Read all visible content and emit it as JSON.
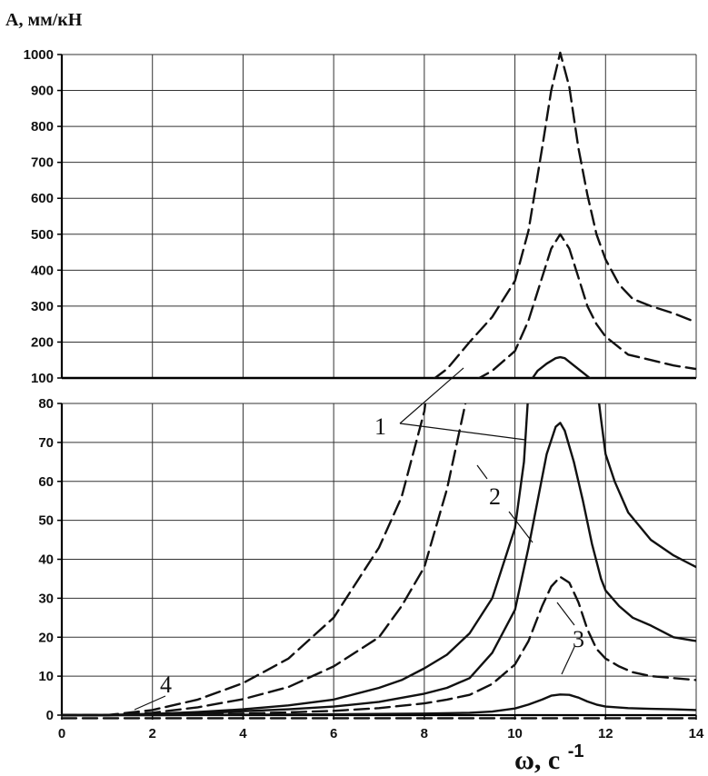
{
  "chart_data": {
    "type": "line",
    "ylabel": "A, мм/кН",
    "xlabel_main": "ω, с",
    "xlabel_exp": "-1",
    "xlim": [
      0,
      14
    ],
    "x_ticks": [
      "0",
      "2",
      "4",
      "6",
      "8",
      "10",
      "12",
      "14"
    ],
    "upper_panel": {
      "ylim": [
        100,
        1000
      ],
      "y_ticks": [
        "100",
        "200",
        "300",
        "400",
        "500",
        "600",
        "700",
        "800",
        "900",
        "1000"
      ]
    },
    "lower_panel": {
      "ylim": [
        0,
        80
      ],
      "y_ticks": [
        "0",
        "10",
        "20",
        "30",
        "40",
        "50",
        "60",
        "70",
        "80"
      ]
    },
    "grid": true,
    "annotations": [
      "1",
      "2",
      "3",
      "4"
    ],
    "series": [
      {
        "style": "dashed",
        "x": [
          0,
          1,
          2,
          3,
          4,
          5,
          6,
          7,
          7.5,
          8,
          8.5,
          9,
          9.5,
          10,
          10.3,
          10.6,
          10.8,
          11,
          11.2,
          11.4,
          11.6,
          11.8,
          12,
          12.3,
          12.6,
          13,
          13.5,
          14
        ],
        "y": [
          0,
          0,
          1.3,
          4,
          8.2,
          14.5,
          25,
          43,
          56,
          78,
          125,
          200,
          270,
          370,
          510,
          740,
          900,
          1005,
          910,
          740,
          610,
          500,
          430,
          360,
          320,
          300,
          280,
          255
        ]
      },
      {
        "style": "dashed",
        "x": [
          0,
          1,
          2,
          3,
          4,
          5,
          6,
          7,
          7.5,
          8,
          8.5,
          9,
          9.5,
          10,
          10.3,
          10.6,
          10.8,
          11,
          11.2,
          11.4,
          11.6,
          11.8,
          12,
          12.5,
          13,
          13.5,
          14
        ],
        "y": [
          0,
          0,
          0.6,
          2,
          4.1,
          7.2,
          12.5,
          20,
          28,
          38,
          58,
          85,
          120,
          175,
          260,
          380,
          460,
          500,
          460,
          380,
          300,
          250,
          215,
          165,
          150,
          135,
          125
        ]
      },
      {
        "style": "solid",
        "x": [
          0,
          1,
          2,
          3,
          4,
          5,
          6,
          7,
          7.5,
          8,
          8.5,
          9,
          9.5,
          10,
          10.2,
          10.5,
          10.7,
          10.9,
          11,
          11.1,
          11.3,
          11.5,
          11.7,
          11.9,
          12,
          12.2,
          12.5,
          13,
          13.5,
          14
        ],
        "y": [
          0,
          0,
          0.3,
          0.8,
          1.5,
          2.5,
          4,
          7,
          9,
          12,
          15.5,
          21,
          30,
          48,
          65,
          120,
          140,
          155,
          158,
          155,
          135,
          115,
          95,
          76,
          67,
          60,
          52,
          45,
          41,
          38
        ]
      },
      {
        "style": "solid",
        "x": [
          0,
          1,
          2,
          3,
          4,
          5,
          6,
          7,
          8,
          8.5,
          9,
          9.5,
          10,
          10.3,
          10.5,
          10.7,
          10.9,
          11,
          11.1,
          11.3,
          11.5,
          11.7,
          11.9,
          12,
          12.3,
          12.6,
          13,
          13.5,
          14
        ],
        "y": [
          0,
          0,
          0.3,
          0.5,
          1,
          1.5,
          2.2,
          3.4,
          5.5,
          7,
          9.5,
          16,
          27,
          43,
          55,
          67,
          74,
          75,
          73,
          65,
          55,
          44,
          35,
          32,
          28,
          25,
          23,
          20,
          19
        ]
      },
      {
        "style": "dashed",
        "x": [
          0,
          1,
          2,
          3,
          4,
          5,
          6,
          7,
          8,
          8.5,
          9,
          9.5,
          10,
          10.3,
          10.6,
          10.8,
          11,
          11.2,
          11.4,
          11.6,
          11.8,
          12,
          12.3,
          12.6,
          13,
          13.5,
          14
        ],
        "y": [
          0,
          0,
          0.1,
          0.2,
          0.4,
          0.7,
          1.1,
          1.8,
          3,
          4,
          5.2,
          8,
          13,
          19,
          28,
          33,
          35.5,
          34,
          29,
          22,
          17,
          14.5,
          12.5,
          11,
          10,
          9.5,
          9
        ]
      },
      {
        "style": "solid",
        "x": [
          0,
          2,
          4,
          6,
          8,
          9,
          9.5,
          10,
          10.3,
          10.6,
          10.8,
          11,
          11.2,
          11.4,
          11.6,
          11.8,
          12,
          12.5,
          13,
          13.5,
          14
        ],
        "y": [
          0,
          0,
          0.1,
          0.2,
          0.4,
          0.6,
          0.9,
          1.7,
          2.7,
          4,
          5,
          5.3,
          5.2,
          4.5,
          3.5,
          2.7,
          2.2,
          1.8,
          1.6,
          1.5,
          1.3
        ]
      },
      {
        "style": "dashed",
        "x": [
          0,
          14
        ],
        "y": [
          -0.8,
          -0.8
        ]
      }
    ]
  }
}
